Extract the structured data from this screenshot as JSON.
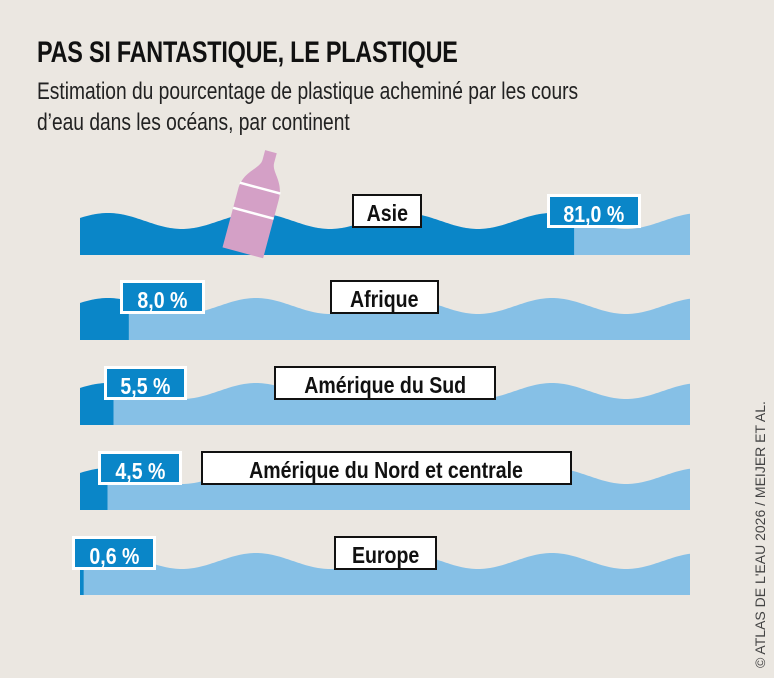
{
  "title": "PAS SI FANTASTIQUE, LE PLASTIQUE",
  "subtitle_line1": "Estimation du pourcentage de plastique acheminé par les cours",
  "subtitle_line2": "d’eau dans les océans, par continent",
  "credit": "ATLAS DE L'EAU 2026 / MEIJER ET AL.",
  "colors": {
    "filled": "#0a86c8",
    "remaining": "#86c0e6",
    "bottle": "#d4a0c6",
    "background": "#ebe7e1"
  },
  "chart_data": {
    "type": "bar",
    "orientation": "horizontal",
    "categories": [
      "Asie",
      "Afrique",
      "Amérique du Sud",
      "Amérique du Nord et centrale",
      "Europe"
    ],
    "values": [
      81.0,
      8.0,
      5.5,
      4.5,
      0.6
    ],
    "labels": [
      "81,0 %",
      "8,0 %",
      "5,5 %",
      "4,5 %",
      "0,6 %"
    ],
    "unit": "%",
    "xlim": [
      0,
      100
    ],
    "grid": false
  }
}
